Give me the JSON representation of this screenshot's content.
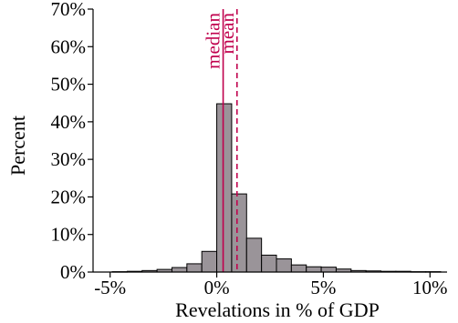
{
  "chart_data": {
    "type": "bar",
    "title": "",
    "xlabel": "Revelations in % of GDP",
    "ylabel": "Percent",
    "xlim": [
      -5.8,
      10.8
    ],
    "ylim": [
      0,
      70
    ],
    "x_ticks": [
      -5,
      0,
      5,
      10
    ],
    "x_tick_labels": [
      "-5%",
      "0%",
      "5%",
      "10%"
    ],
    "y_ticks": [
      0,
      10,
      20,
      30,
      40,
      50,
      60,
      70
    ],
    "y_tick_labels": [
      "0%",
      "10%",
      "20%",
      "30%",
      "40%",
      "50%",
      "60%",
      "70%"
    ],
    "bin_width": 0.7,
    "bin_starts": [
      -4.9,
      -4.2,
      -3.5,
      -2.8,
      -2.1,
      -1.4,
      -0.7,
      0.0,
      0.7,
      1.4,
      2.1,
      2.8,
      3.5,
      4.2,
      4.9,
      5.6,
      6.3,
      7.0,
      7.7,
      8.4,
      9.1,
      9.8
    ],
    "values": [
      0.1,
      0.2,
      0.4,
      0.7,
      1.2,
      2.2,
      5.5,
      44.8,
      20.8,
      9.0,
      4.5,
      3.5,
      1.9,
      1.4,
      1.3,
      0.8,
      0.4,
      0.3,
      0.2,
      0.2,
      0.1,
      0.1
    ],
    "bar_color": "#9a9499",
    "grid": false,
    "markers": [
      {
        "label": "median",
        "x": 0.3,
        "style": "solid",
        "color": "#c0004d"
      },
      {
        "label": "mean",
        "x": 0.95,
        "style": "dashed",
        "color": "#c0004d"
      }
    ]
  }
}
